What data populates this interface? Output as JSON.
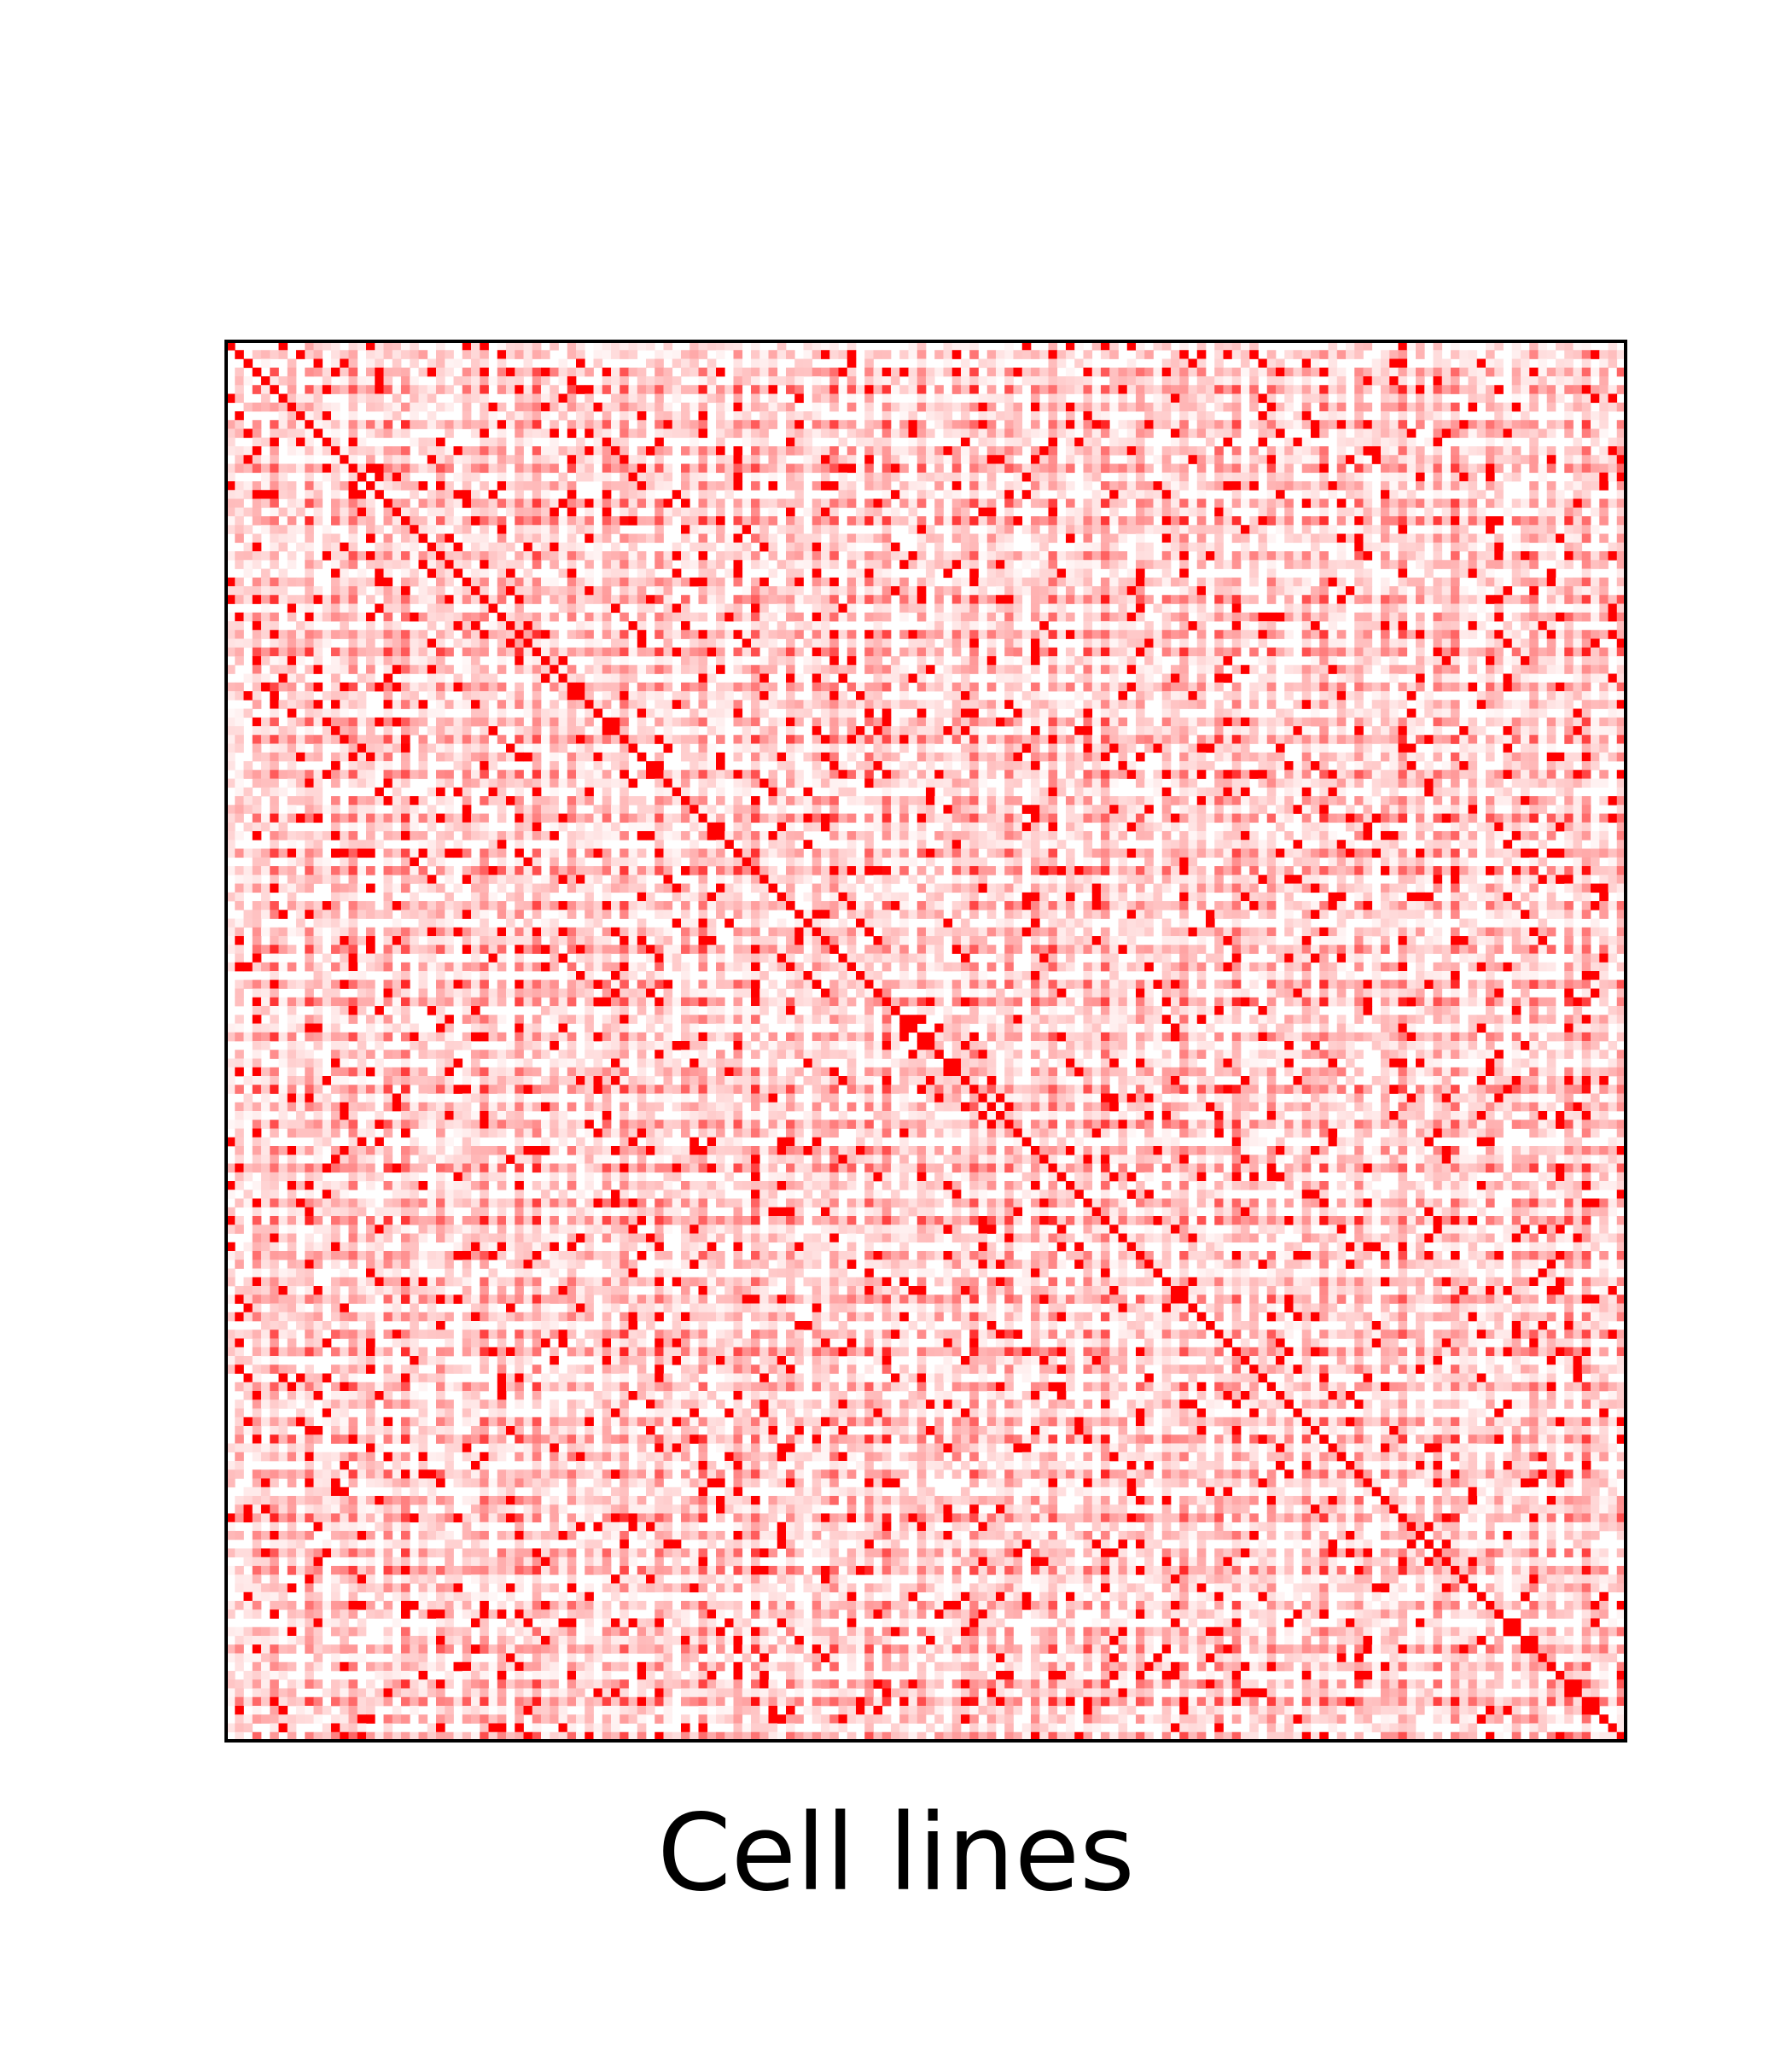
{
  "chart_data": {
    "type": "heatmap",
    "title": "",
    "xlabel": "Cell lines",
    "ylabel": "",
    "matrix_size": 160,
    "value_range": [
      0,
      1
    ],
    "colormap": {
      "low": "#ffffff",
      "high": "#ff0000"
    },
    "diagonal_value": 1.0,
    "row_profile": [
      0.2,
      0.45,
      0.1,
      0.65,
      0.3,
      0.9,
      0.25,
      0.55,
      0.15,
      0.75,
      0.4,
      0.05,
      0.6,
      0.35,
      0.85,
      0.2,
      0.5,
      0.1,
      0.7,
      0.3,
      0.95,
      0.25,
      0.45,
      0.15,
      0.65,
      0.4,
      0.05,
      0.55,
      0.35,
      0.8,
      0.2,
      0.6,
      0.1,
      0.75,
      0.3,
      0.9,
      0.25,
      0.5,
      0.15,
      0.7
    ],
    "grid": false,
    "legend": "none",
    "ticks": "none"
  }
}
